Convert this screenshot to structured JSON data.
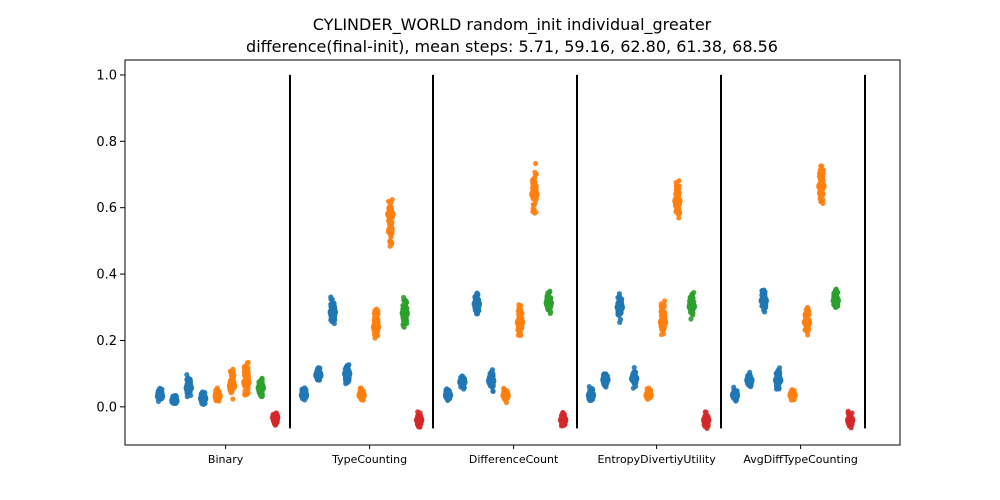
{
  "chart_data": {
    "type": "scatter",
    "title": "CYLINDER_WORLD random_init individual_greater",
    "subtitle": "difference(final-init), mean steps: 5.71, 59.16, 62.80, 61.38, 68.56",
    "xlabel": "",
    "ylabel": "",
    "ylim": [
      -0.115,
      1.045
    ],
    "yticks": [
      "0.0",
      "0.2",
      "0.4",
      "0.6",
      "0.8",
      "1.0"
    ],
    "grid": false,
    "separators_after_groups": true,
    "colors": {
      "blue": "#1f77b4",
      "orange": "#ff7f0e",
      "green": "#2ca02c",
      "red": "#d62728"
    },
    "groups": [
      {
        "label": "Binary",
        "strips": [
          {
            "color": "blue",
            "mean": 0.032,
            "min": 0.01,
            "max": 0.065
          },
          {
            "color": "blue",
            "mean": 0.018,
            "min": 0.005,
            "max": 0.04
          },
          {
            "color": "blue",
            "mean": 0.057,
            "min": 0.02,
            "max": 0.1
          },
          {
            "color": "blue",
            "mean": 0.025,
            "min": 0.005,
            "max": 0.05
          },
          {
            "color": "orange",
            "mean": 0.032,
            "min": 0.01,
            "max": 0.06
          },
          {
            "color": "orange",
            "mean": 0.062,
            "min": 0.015,
            "max": 0.125
          },
          {
            "color": "orange",
            "mean": 0.073,
            "min": 0.015,
            "max": 0.155
          },
          {
            "color": "green",
            "mean": 0.057,
            "min": 0.015,
            "max": 0.1
          },
          {
            "color": "red",
            "mean": -0.032,
            "min": -0.06,
            "max": -0.01
          }
        ]
      },
      {
        "label": "TypeCounting",
        "strips": [
          {
            "color": "blue",
            "mean": 0.035,
            "min": 0.01,
            "max": 0.065
          },
          {
            "color": "blue",
            "mean": 0.095,
            "min": 0.065,
            "max": 0.125
          },
          {
            "color": "blue",
            "mean": 0.285,
            "min": 0.23,
            "max": 0.34
          },
          {
            "color": "blue",
            "mean": 0.1,
            "min": 0.055,
            "max": 0.14
          },
          {
            "color": "orange",
            "mean": 0.035,
            "min": 0.01,
            "max": 0.065
          },
          {
            "color": "orange",
            "mean": 0.24,
            "min": 0.19,
            "max": 0.315
          },
          {
            "color": "orange",
            "mean": 0.58,
            "min": 0.45,
            "max": 0.675
          },
          {
            "color": "green",
            "mean": 0.282,
            "min": 0.23,
            "max": 0.34
          },
          {
            "color": "red",
            "mean": -0.04,
            "min": -0.07,
            "max": -0.01
          }
        ]
      },
      {
        "label": "DifferenceCount",
        "strips": [
          {
            "color": "blue",
            "mean": 0.035,
            "min": 0.01,
            "max": 0.065
          },
          {
            "color": "blue",
            "mean": 0.075,
            "min": 0.045,
            "max": 0.105
          },
          {
            "color": "blue",
            "mean": 0.31,
            "min": 0.26,
            "max": 0.36
          },
          {
            "color": "blue",
            "mean": 0.078,
            "min": 0.04,
            "max": 0.12
          },
          {
            "color": "orange",
            "mean": 0.035,
            "min": 0.01,
            "max": 0.065
          },
          {
            "color": "orange",
            "mean": 0.255,
            "min": 0.2,
            "max": 0.33
          },
          {
            "color": "orange",
            "mean": 0.64,
            "min": 0.565,
            "max": 0.74
          },
          {
            "color": "green",
            "mean": 0.312,
            "min": 0.265,
            "max": 0.36
          },
          {
            "color": "red",
            "mean": -0.04,
            "min": -0.07,
            "max": -0.01
          }
        ]
      },
      {
        "label": "EntropyDivertiyUtility",
        "strips": [
          {
            "color": "blue",
            "mean": 0.035,
            "min": 0.01,
            "max": 0.065
          },
          {
            "color": "blue",
            "mean": 0.082,
            "min": 0.05,
            "max": 0.115
          },
          {
            "color": "blue",
            "mean": 0.3,
            "min": 0.25,
            "max": 0.355
          },
          {
            "color": "blue",
            "mean": 0.085,
            "min": 0.05,
            "max": 0.12
          },
          {
            "color": "orange",
            "mean": 0.035,
            "min": 0.01,
            "max": 0.065
          },
          {
            "color": "orange",
            "mean": 0.255,
            "min": 0.2,
            "max": 0.33
          },
          {
            "color": "orange",
            "mean": 0.62,
            "min": 0.53,
            "max": 0.72
          },
          {
            "color": "green",
            "mean": 0.302,
            "min": 0.26,
            "max": 0.355
          },
          {
            "color": "red",
            "mean": -0.04,
            "min": -0.07,
            "max": -0.01
          }
        ]
      },
      {
        "label": "AvgDiffTypeCounting",
        "strips": [
          {
            "color": "blue",
            "mean": 0.035,
            "min": 0.01,
            "max": 0.065
          },
          {
            "color": "blue",
            "mean": 0.08,
            "min": 0.05,
            "max": 0.11
          },
          {
            "color": "blue",
            "mean": 0.32,
            "min": 0.28,
            "max": 0.365
          },
          {
            "color": "blue",
            "mean": 0.08,
            "min": 0.04,
            "max": 0.125
          },
          {
            "color": "orange",
            "mean": 0.035,
            "min": 0.01,
            "max": 0.065
          },
          {
            "color": "orange",
            "mean": 0.255,
            "min": 0.2,
            "max": 0.33
          },
          {
            "color": "orange",
            "mean": 0.665,
            "min": 0.585,
            "max": 0.76
          },
          {
            "color": "green",
            "mean": 0.32,
            "min": 0.28,
            "max": 0.365
          },
          {
            "color": "red",
            "mean": -0.04,
            "min": -0.07,
            "max": -0.01
          }
        ]
      }
    ]
  }
}
